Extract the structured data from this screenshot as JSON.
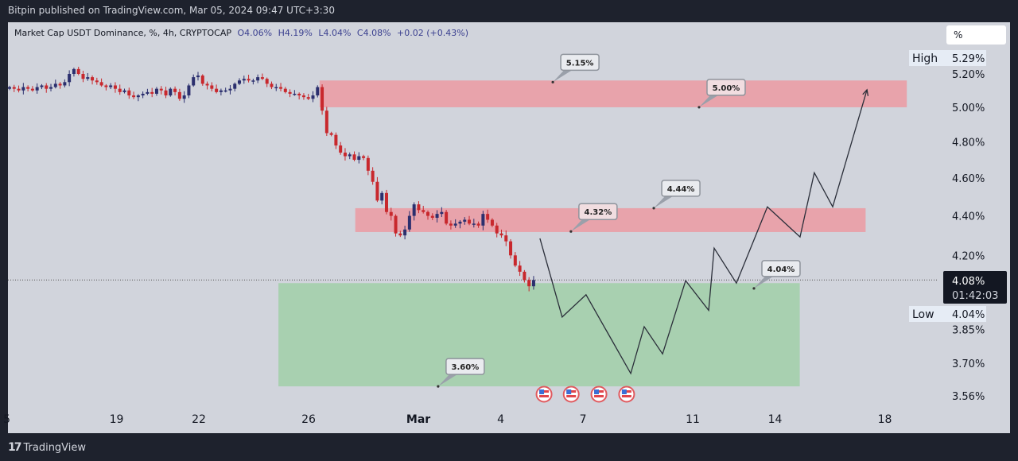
{
  "header": {
    "published": "Bitpin published on TradingView.com, Mar 05, 2024 09:47 UTC+3:30"
  },
  "legend": {
    "symbol": "Market Cap USDT Dominance, %, 4h, CRYPTOCAP",
    "open": "O4.06%",
    "high": "H4.19%",
    "low": "L4.04%",
    "close": "C4.08%",
    "change": "+0.02 (+0.43%)"
  },
  "scale_unit": "%",
  "footer": {
    "brand": "TradingView"
  },
  "colors": {
    "up": "#2b2f6e",
    "down": "#c8282d",
    "zone_red": "#e8a3ab",
    "zone_green": "#a8d0b0",
    "bg": "#d1d4dc"
  },
  "chart_data": {
    "type": "candlestick",
    "title": "Market Cap USDT Dominance, %, 4h, CRYPTOCAP",
    "y_scale": "log",
    "ylim": [
      3.5,
      5.35
    ],
    "x_unit": "days since Feb 15, 2024",
    "candle_start_day": 0,
    "candle_end_day": 19.1,
    "closes": [
      5.12,
      5.11,
      5.1,
      5.12,
      5.11,
      5.1,
      5.12,
      5.13,
      5.11,
      5.12,
      5.14,
      5.13,
      5.15,
      5.2,
      5.23,
      5.2,
      5.17,
      5.18,
      5.16,
      5.15,
      5.13,
      5.12,
      5.13,
      5.11,
      5.09,
      5.1,
      5.07,
      5.06,
      5.07,
      5.08,
      5.09,
      5.08,
      5.11,
      5.1,
      5.07,
      5.11,
      5.09,
      5.05,
      5.07,
      5.13,
      5.18,
      5.19,
      5.14,
      5.13,
      5.11,
      5.09,
      5.1,
      5.1,
      5.11,
      5.14,
      5.16,
      5.17,
      5.16,
      5.16,
      5.18,
      5.17,
      5.14,
      5.12,
      5.12,
      5.11,
      5.09,
      5.08,
      5.08,
      5.07,
      5.06,
      5.05,
      5.07,
      5.12,
      4.98,
      4.85,
      4.84,
      4.78,
      4.74,
      4.72,
      4.73,
      4.7,
      4.72,
      4.71,
      4.64,
      4.58,
      4.48,
      4.52,
      4.42,
      4.4,
      4.31,
      4.3,
      4.33,
      4.4,
      4.46,
      4.43,
      4.42,
      4.4,
      4.39,
      4.41,
      4.42,
      4.36,
      4.35,
      4.36,
      4.37,
      4.38,
      4.36,
      4.36,
      4.35,
      4.41,
      4.38,
      4.35,
      4.31,
      4.3,
      4.27,
      4.2,
      4.15,
      4.12,
      4.08,
      4.05,
      4.08
    ],
    "last_price": {
      "value": "4.08%",
      "countdown": "01:42:03",
      "price": 4.08
    },
    "high_label": {
      "label": "High",
      "value": "5.29%"
    },
    "low_label": {
      "label": "Low",
      "value": "4.04%"
    },
    "y_ticks": [
      {
        "label": "5.20%",
        "v": 5.2
      },
      {
        "label": "5.00%",
        "v": 5.0
      },
      {
        "label": "4.80%",
        "v": 4.8
      },
      {
        "label": "4.60%",
        "v": 4.6
      },
      {
        "label": "4.40%",
        "v": 4.4
      },
      {
        "label": "4.20%",
        "v": 4.2
      },
      {
        "label": "3.85%",
        "v": 3.85
      },
      {
        "label": "3.70%",
        "v": 3.7
      },
      {
        "label": "3.56%",
        "v": 3.56
      }
    ],
    "x_ticks": [
      {
        "label": "5",
        "d": -0.1
      },
      {
        "label": "19",
        "d": 3.9
      },
      {
        "label": "22",
        "d": 6.9
      },
      {
        "label": "26",
        "d": 10.9
      },
      {
        "label": "Mar",
        "d": 14.9
      },
      {
        "label": "4",
        "d": 17.9
      },
      {
        "label": "7",
        "d": 20.9
      },
      {
        "label": "11",
        "d": 24.9
      },
      {
        "label": "14",
        "d": 27.9
      },
      {
        "label": "18",
        "d": 31.9
      }
    ],
    "zones": [
      {
        "type": "resistance",
        "d0": 11.3,
        "d1": 32.7,
        "p0": 5.0,
        "p1": 5.16
      },
      {
        "type": "resistance",
        "d0": 12.6,
        "d1": 31.2,
        "p0": 4.317,
        "p1": 4.44
      },
      {
        "type": "support",
        "d0": 9.8,
        "d1": 28.8,
        "p0": 3.6,
        "p1": 4.065
      }
    ],
    "projection": [
      [
        19.33,
        4.285
      ],
      [
        20.14,
        3.906
      ],
      [
        21.01,
        4.01
      ],
      [
        22.64,
        3.655
      ],
      [
        23.13,
        3.862
      ],
      [
        23.8,
        3.74
      ],
      [
        24.64,
        4.077
      ],
      [
        25.48,
        3.937
      ],
      [
        25.68,
        4.236
      ],
      [
        26.49,
        4.065
      ],
      [
        27.62,
        4.447
      ],
      [
        28.81,
        4.292
      ],
      [
        29.33,
        4.629
      ],
      [
        30.0,
        4.447
      ],
      [
        31.25,
        5.104
      ]
    ],
    "callouts": [
      {
        "text": "5.15%",
        "d": 19.8,
        "p": 5.15,
        "pink": false
      },
      {
        "text": "5.00%",
        "d": 25.13,
        "p": 5.0,
        "pink": true
      },
      {
        "text": "4.44%",
        "d": 23.48,
        "p": 4.44,
        "pink": false
      },
      {
        "text": "4.32%",
        "d": 20.46,
        "p": 4.32,
        "pink": true
      },
      {
        "text": "4.04%",
        "d": 27.13,
        "p": 4.04,
        "pink": false
      },
      {
        "text": "3.60%",
        "d": 15.62,
        "p": 3.6,
        "pink": false
      }
    ],
    "events": [
      {
        "d": 19.48,
        "icon": "us-flag"
      },
      {
        "d": 20.47,
        "icon": "us-flag"
      },
      {
        "d": 21.48,
        "icon": "us-flag"
      },
      {
        "d": 22.49,
        "icon": "us-flag"
      }
    ]
  }
}
